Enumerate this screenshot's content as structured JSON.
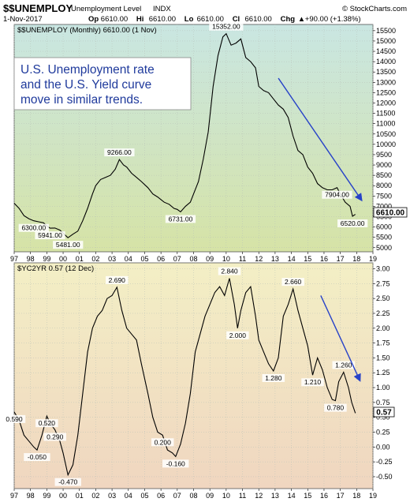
{
  "header": {
    "symbol": "$$UNEMPLOY",
    "name": "Unemployment Level",
    "exchange": "INDX",
    "source": "© StockCharts.com",
    "date": "1-Nov-2017",
    "quote": [
      {
        "label": "Op",
        "value": "6610.00"
      },
      {
        "label": "Hi",
        "value": "6610.00"
      },
      {
        "label": "Lo",
        "value": "6610.00"
      },
      {
        "label": "Cl",
        "value": "6610.00"
      },
      {
        "label": "Chg",
        "value": "+90.00 (+1.38%)"
      }
    ],
    "chg_arrow": "▲"
  },
  "annotation": {
    "lines": [
      "U.S. Unemployment rate",
      "and the U.S. Yield curve",
      "move in similar trends."
    ]
  },
  "colors": {
    "line": "#000000",
    "arrow": "#2742c8",
    "annotation_text": "#1f3a9c",
    "top_bg_top": "#c9e6e2",
    "top_bg_bottom": "#d6e3a6",
    "bottom_bg_top": "#f3efc5",
    "bottom_bg_bottom": "#f0d6c0"
  },
  "chart_data": [
    {
      "type": "line",
      "title": "$$UNEMPLOY (Monthly) 6610.00 (1 Nov)",
      "series_name": "$$UNEMPLOY",
      "x_tick_labels": [
        "97",
        "98",
        "99",
        "00",
        "01",
        "02",
        "03",
        "04",
        "05",
        "06",
        "07",
        "08",
        "09",
        "10",
        "11",
        "12",
        "13",
        "14",
        "15",
        "16",
        "17",
        "18",
        "19"
      ],
      "y_ticks": [
        "5000",
        "5500",
        "6000",
        "6500",
        "7000",
        "7500",
        "8000",
        "8500",
        "9000",
        "9500",
        "10000",
        "10500",
        "11000",
        "11500",
        "12000",
        "12500",
        "13000",
        "13500",
        "14000",
        "14500",
        "15000",
        "15500"
      ],
      "ylim": [
        4800,
        15800
      ],
      "current_value": "6610.00",
      "points": [
        [
          1997.0,
          7150
        ],
        [
          1997.3,
          6900
        ],
        [
          1997.6,
          6550
        ],
        [
          1997.9,
          6400
        ],
        [
          1998.2,
          6300
        ],
        [
          1998.5,
          6250
        ],
        [
          1998.8,
          6200
        ],
        [
          1999.0,
          6050
        ],
        [
          1999.2,
          5941
        ],
        [
          1999.5,
          5950
        ],
        [
          1999.8,
          5850
        ],
        [
          2000.0,
          5700
        ],
        [
          2000.3,
          5481
        ],
        [
          2000.6,
          5650
        ],
        [
          2000.9,
          5800
        ],
        [
          2001.2,
          6300
        ],
        [
          2001.5,
          6900
        ],
        [
          2001.8,
          7600
        ],
        [
          2002.0,
          8000
        ],
        [
          2002.3,
          8300
        ],
        [
          2002.6,
          8400
        ],
        [
          2002.9,
          8500
        ],
        [
          2003.2,
          8800
        ],
        [
          2003.45,
          9266
        ],
        [
          2003.7,
          9000
        ],
        [
          2003.9,
          8900
        ],
        [
          2004.2,
          8600
        ],
        [
          2004.5,
          8400
        ],
        [
          2004.8,
          8200
        ],
        [
          2005.2,
          7900
        ],
        [
          2005.5,
          7600
        ],
        [
          2005.8,
          7450
        ],
        [
          2006.2,
          7200
        ],
        [
          2006.5,
          7100
        ],
        [
          2006.8,
          6900
        ],
        [
          2007.0,
          6850
        ],
        [
          2007.2,
          6731
        ],
        [
          2007.5,
          7000
        ],
        [
          2007.8,
          7200
        ],
        [
          2008.0,
          7600
        ],
        [
          2008.3,
          8200
        ],
        [
          2008.6,
          9300
        ],
        [
          2008.9,
          10600
        ],
        [
          2009.2,
          12800
        ],
        [
          2009.5,
          14300
        ],
        [
          2009.8,
          15200
        ],
        [
          2010.0,
          15352
        ],
        [
          2010.3,
          14800
        ],
        [
          2010.6,
          14900
        ],
        [
          2010.9,
          15100
        ],
        [
          2011.2,
          14200
        ],
        [
          2011.5,
          14000
        ],
        [
          2011.8,
          13700
        ],
        [
          2012.0,
          12800
        ],
        [
          2012.3,
          12600
        ],
        [
          2012.6,
          12500
        ],
        [
          2012.9,
          12200
        ],
        [
          2013.2,
          11900
        ],
        [
          2013.5,
          11700
        ],
        [
          2013.8,
          11300
        ],
        [
          2014.1,
          10400
        ],
        [
          2014.4,
          9700
        ],
        [
          2014.7,
          9500
        ],
        [
          2015.0,
          8900
        ],
        [
          2015.3,
          8600
        ],
        [
          2015.6,
          8100
        ],
        [
          2015.9,
          7900
        ],
        [
          2016.2,
          7800
        ],
        [
          2016.5,
          7800
        ],
        [
          2016.8,
          7904
        ],
        [
          2017.0,
          7600
        ],
        [
          2017.3,
          7200
        ],
        [
          2017.6,
          7000
        ],
        [
          2017.75,
          6520
        ],
        [
          2017.92,
          6610
        ]
      ],
      "point_labels": [
        {
          "text": "6300.00",
          "x": 1998.2,
          "y": 6300
        },
        {
          "text": "5941.00",
          "x": 1999.2,
          "y": 5941
        },
        {
          "text": "5481.00",
          "x": 2000.3,
          "y": 5481
        },
        {
          "text": "9266.00",
          "x": 2003.45,
          "y": 9266
        },
        {
          "text": "6731.00",
          "x": 2007.2,
          "y": 6731
        },
        {
          "text": "15352.00",
          "x": 2010.0,
          "y": 15352
        },
        {
          "text": "7904.00",
          "x": 2016.8,
          "y": 7904
        },
        {
          "text": "6520.00",
          "x": 2017.75,
          "y": 6520
        }
      ],
      "trend_arrow": {
        "from": [
          2013.2,
          13200
        ],
        "to": [
          2018.3,
          7300
        ]
      }
    },
    {
      "type": "line",
      "title": "$YC2YR 0.57 (12 Dec)",
      "series_name": "$YC2YR",
      "x_tick_labels": [
        "97",
        "98",
        "99",
        "00",
        "01",
        "02",
        "03",
        "04",
        "05",
        "06",
        "07",
        "08",
        "09",
        "10",
        "11",
        "12",
        "13",
        "14",
        "15",
        "16",
        "17",
        "18",
        "19"
      ],
      "y_ticks": [
        "-0.50",
        "-0.25",
        "0.00",
        "0.25",
        "0.50",
        "0.75",
        "1.00",
        "1.25",
        "1.50",
        "1.75",
        "2.00",
        "2.25",
        "2.50",
        "2.75",
        "3.00"
      ],
      "ylim": [
        -0.7,
        3.1
      ],
      "current_value": "0.57",
      "points": [
        [
          1997.0,
          0.59
        ],
        [
          1997.3,
          0.45
        ],
        [
          1997.6,
          0.2
        ],
        [
          1997.9,
          0.1
        ],
        [
          1998.2,
          0.0
        ],
        [
          1998.4,
          -0.05
        ],
        [
          1998.7,
          0.2
        ],
        [
          1999.0,
          0.52
        ],
        [
          1999.2,
          0.4
        ],
        [
          1999.5,
          0.29
        ],
        [
          1999.8,
          0.1
        ],
        [
          2000.0,
          -0.1
        ],
        [
          2000.3,
          -0.47
        ],
        [
          2000.6,
          -0.3
        ],
        [
          2000.9,
          0.2
        ],
        [
          2001.2,
          0.9
        ],
        [
          2001.5,
          1.6
        ],
        [
          2001.8,
          2.0
        ],
        [
          2002.1,
          2.2
        ],
        [
          2002.4,
          2.3
        ],
        [
          2002.7,
          2.5
        ],
        [
          2003.0,
          2.55
        ],
        [
          2003.3,
          2.69
        ],
        [
          2003.6,
          2.3
        ],
        [
          2003.9,
          2.0
        ],
        [
          2004.2,
          1.9
        ],
        [
          2004.5,
          1.8
        ],
        [
          2004.8,
          1.4
        ],
        [
          2005.2,
          0.9
        ],
        [
          2005.5,
          0.5
        ],
        [
          2005.8,
          0.25
        ],
        [
          2006.1,
          0.2
        ],
        [
          2006.4,
          -0.05
        ],
        [
          2006.7,
          -0.1
        ],
        [
          2006.9,
          -0.16
        ],
        [
          2007.2,
          0.05
        ],
        [
          2007.5,
          0.4
        ],
        [
          2007.8,
          0.9
        ],
        [
          2008.1,
          1.6
        ],
        [
          2008.4,
          1.9
        ],
        [
          2008.7,
          2.2
        ],
        [
          2009.0,
          2.4
        ],
        [
          2009.3,
          2.6
        ],
        [
          2009.6,
          2.7
        ],
        [
          2009.9,
          2.55
        ],
        [
          2010.2,
          2.84
        ],
        [
          2010.5,
          2.4
        ],
        [
          2010.7,
          2.0
        ],
        [
          2010.9,
          2.3
        ],
        [
          2011.2,
          2.6
        ],
        [
          2011.5,
          2.7
        ],
        [
          2011.8,
          2.2
        ],
        [
          2012.0,
          1.8
        ],
        [
          2012.3,
          1.6
        ],
        [
          2012.6,
          1.4
        ],
        [
          2012.9,
          1.28
        ],
        [
          2013.2,
          1.5
        ],
        [
          2013.5,
          2.2
        ],
        [
          2013.8,
          2.4
        ],
        [
          2014.1,
          2.66
        ],
        [
          2014.4,
          2.3
        ],
        [
          2014.7,
          2.0
        ],
        [
          2015.0,
          1.7
        ],
        [
          2015.3,
          1.21
        ],
        [
          2015.6,
          1.5
        ],
        [
          2015.9,
          1.3
        ],
        [
          2016.2,
          1.0
        ],
        [
          2016.5,
          0.8
        ],
        [
          2016.7,
          0.78
        ],
        [
          2016.9,
          1.1
        ],
        [
          2017.2,
          1.26
        ],
        [
          2017.5,
          1.0
        ],
        [
          2017.7,
          0.75
        ],
        [
          2017.92,
          0.57
        ]
      ],
      "point_labels": [
        {
          "text": "0.590",
          "x": 1997.0,
          "y": 0.59
        },
        {
          "text": "-0.050",
          "x": 1998.4,
          "y": -0.05
        },
        {
          "text": "0.520",
          "x": 1999.0,
          "y": 0.52
        },
        {
          "text": "0.290",
          "x": 1999.5,
          "y": 0.29
        },
        {
          "text": "-0.470",
          "x": 2000.3,
          "y": -0.47
        },
        {
          "text": "2.690",
          "x": 2003.3,
          "y": 2.69
        },
        {
          "text": "0.200",
          "x": 2006.1,
          "y": 0.2
        },
        {
          "text": "-0.160",
          "x": 2006.9,
          "y": -0.16
        },
        {
          "text": "2.840",
          "x": 2010.2,
          "y": 2.84
        },
        {
          "text": "2.000",
          "x": 2010.7,
          "y": 2.0
        },
        {
          "text": "1.280",
          "x": 2012.9,
          "y": 1.28
        },
        {
          "text": "2.660",
          "x": 2014.1,
          "y": 2.66
        },
        {
          "text": "1.210",
          "x": 2015.3,
          "y": 1.21
        },
        {
          "text": "1.260",
          "x": 2017.2,
          "y": 1.26
        },
        {
          "text": "0.780",
          "x": 2016.7,
          "y": 0.78
        }
      ],
      "trend_arrow": {
        "from": [
          2015.8,
          2.55
        ],
        "to": [
          2018.2,
          1.12
        ]
      }
    }
  ]
}
